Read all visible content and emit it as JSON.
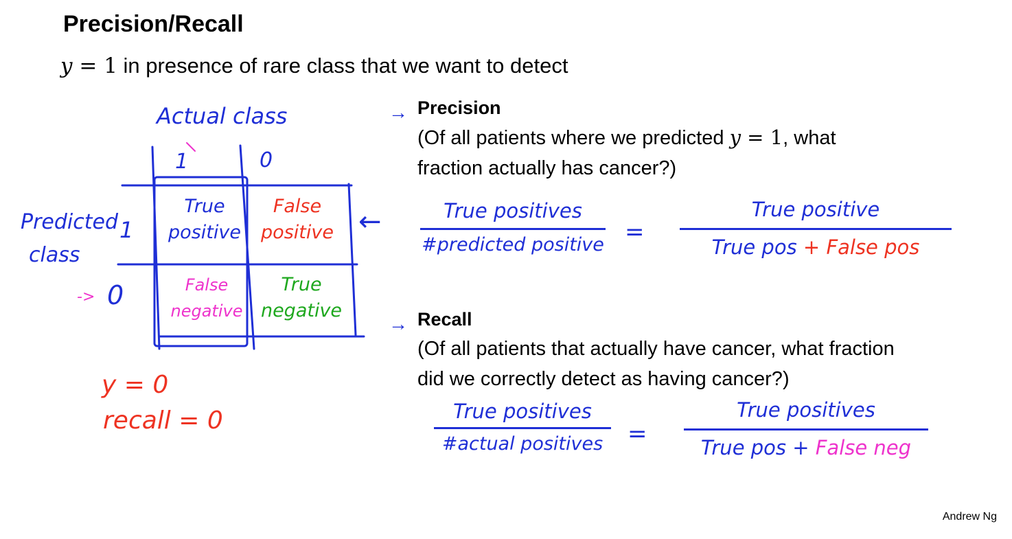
{
  "title": "Precision/Recall",
  "subtitle": {
    "math_var": "y",
    "math_eq": " = 1",
    "text": " in presence of rare class that we want to detect"
  },
  "matrix": {
    "actual_label": "Actual class",
    "actual_col_1": "1",
    "actual_col_0": "0",
    "predicted_label_line1": "Predicted",
    "predicted_label_line2": "class",
    "predicted_row_1": "1",
    "predicted_row_0": "0",
    "cells": {
      "tp_line1": "True",
      "tp_line2": "positive",
      "fp_line1": "False",
      "fp_line2": "positive",
      "fn_line1": "False",
      "fn_line2": "negative",
      "tn_line1": "True",
      "tn_line2": "negative"
    },
    "arrow_left": "←",
    "arrow_row": "->"
  },
  "note": {
    "line1": "y = 0",
    "line2": "recall = 0"
  },
  "precision": {
    "heading": "Precision",
    "desc_part1": "(Of all patients where we predicted ",
    "desc_math_var": "y",
    "desc_math_eq": " = 1",
    "desc_part2": ", what",
    "desc_line2": "fraction actually has cancer?)",
    "frac1_num": "True positives",
    "frac1_den": "#predicted positive",
    "equals": "=",
    "frac2_num": "True positive",
    "frac2_den_a": "True pos ",
    "frac2_den_b": "+ False pos"
  },
  "recall": {
    "heading": "Recall",
    "desc_line1": "(Of all patients that actually have cancer, what fraction",
    "desc_line2": "did we correctly detect as having cancer?)",
    "frac1_num": "True positives",
    "frac1_den": "#actual positives",
    "equals": "=",
    "frac2_num": "True positives",
    "frac2_den_a": "True pos + ",
    "frac2_den_b": "False neg"
  },
  "arrow_bullet": "→",
  "footer": "Andrew Ng",
  "colors": {
    "ink_blue": "#1f2fd6",
    "ink_red": "#ee3322",
    "ink_magenta": "#ee33cc",
    "ink_green": "#1ea81e"
  }
}
